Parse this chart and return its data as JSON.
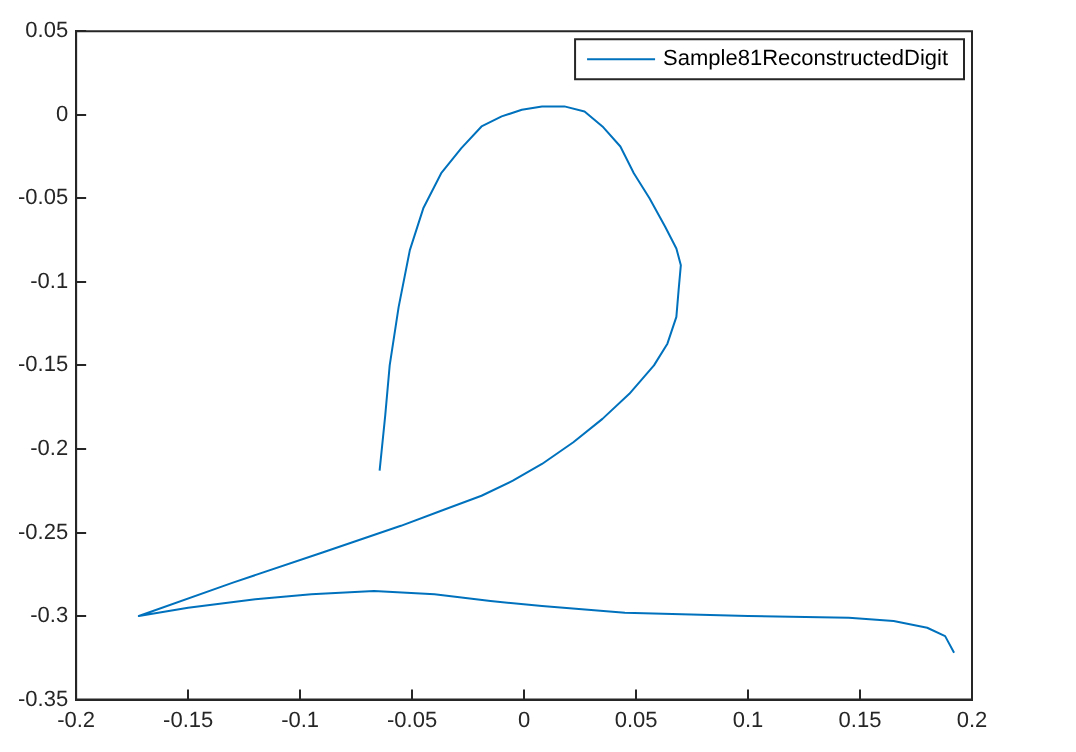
{
  "chart_data": {
    "type": "line",
    "xlim": [
      -0.2,
      0.2
    ],
    "xticks": [
      -0.2,
      -0.15,
      -0.1,
      -0.05,
      0,
      0.05,
      0.1,
      0.15,
      0.2
    ],
    "ylim": [
      -0.35,
      0.05
    ],
    "yticks": [
      -0.35,
      -0.3,
      -0.25,
      -0.2,
      -0.15,
      -0.1,
      -0.05,
      0,
      0.05
    ],
    "grid": false,
    "legend": "top right",
    "marker": "none",
    "line_style": "solid",
    "series": [
      {
        "name": "Sample81ReconstructedDigit",
        "color": "#0072bd",
        "x": [
          -0.0645,
          -0.062,
          -0.06,
          -0.056,
          -0.051,
          -0.045,
          -0.037,
          -0.028,
          -0.019,
          -0.01,
          -0.001,
          0.008,
          0.018,
          0.027,
          0.035,
          0.043,
          0.049,
          0.056,
          0.063,
          0.068,
          0.07,
          0.069,
          0.068,
          0.064,
          0.058,
          0.047,
          0.035,
          0.022,
          0.008,
          -0.005,
          -0.019,
          -0.037,
          -0.055,
          -0.09,
          -0.13,
          -0.172,
          -0.15,
          -0.12,
          -0.095,
          -0.067,
          -0.04,
          -0.015,
          0.008,
          0.045,
          0.1,
          0.145,
          0.165,
          0.18,
          0.188,
          0.192
        ],
        "values": [
          -0.213,
          -0.18,
          -0.15,
          -0.115,
          -0.081,
          -0.056,
          -0.035,
          -0.02,
          -0.007,
          -0.001,
          0.003,
          0.005,
          0.005,
          0.002,
          -0.007,
          -0.019,
          -0.035,
          -0.05,
          -0.067,
          -0.08,
          -0.09,
          -0.105,
          -0.121,
          -0.137,
          -0.15,
          -0.167,
          -0.182,
          -0.196,
          -0.209,
          -0.219,
          -0.228,
          -0.237,
          -0.246,
          -0.262,
          -0.28,
          -0.3,
          -0.295,
          -0.29,
          -0.287,
          -0.285,
          -0.287,
          -0.291,
          -0.294,
          -0.298,
          -0.3,
          -0.301,
          -0.303,
          -0.307,
          -0.312,
          -0.322
        ]
      }
    ]
  }
}
